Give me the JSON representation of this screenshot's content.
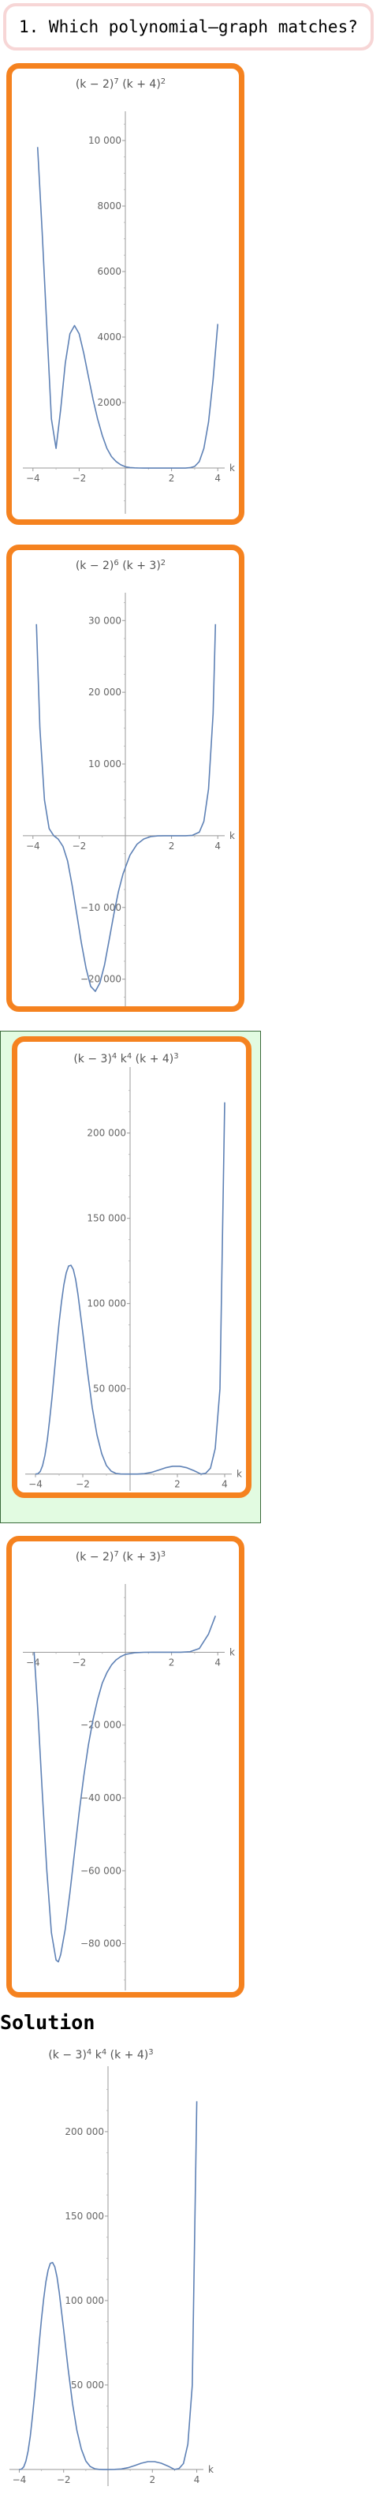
{
  "question": {
    "text": "1. Which polynomial–graph matches?"
  },
  "solution_title": "Solution",
  "options": [
    {
      "id": "option-1",
      "selected": false
    },
    {
      "id": "option-2",
      "selected": false
    },
    {
      "id": "option-3",
      "selected": true
    },
    {
      "id": "option-4",
      "selected": false
    }
  ],
  "chart_data": [
    {
      "type": "line",
      "title_parts": [
        "(k − 2)",
        "7",
        " (k + 4)",
        "2"
      ],
      "xlabel": "k",
      "xticks": [
        -4,
        -2,
        2,
        4
      ],
      "xtick_labels": [
        "−4",
        "−2",
        "2",
        "4"
      ],
      "yticks": [
        2000,
        4000,
        6000,
        8000,
        10000
      ],
      "ytick_labels": [
        "2000",
        "4000",
        "6000",
        "8000",
        "10 000"
      ],
      "xlim": [
        -4.3,
        4.3
      ],
      "ylim": [
        -1300,
        10700
      ],
      "x": [
        -3.8,
        -3.6,
        -3.4,
        -3.2,
        -3.0,
        -2.8,
        -2.6,
        -2.4,
        -2.2,
        -2.0,
        -1.8,
        -1.6,
        -1.4,
        -1.2,
        -1.0,
        -0.8,
        -0.6,
        -0.4,
        -0.2,
        0.0,
        0.2,
        0.4,
        0.6,
        0.8,
        1.0,
        1.2,
        1.4,
        1.6,
        1.8,
        2.0,
        2.2,
        2.4,
        2.6,
        2.8,
        3.0,
        3.2,
        3.4,
        3.6,
        3.8,
        4.0
      ],
      "y": [
        9800,
        7200,
        4300,
        1500,
        600,
        1800,
        3200,
        4100,
        4350,
        4100,
        3500,
        2800,
        2100,
        1500,
        1000,
        600,
        350,
        200,
        100,
        40,
        15,
        5,
        2,
        0,
        0,
        0,
        0,
        0,
        0,
        0,
        0,
        0,
        0,
        10,
        50,
        200,
        600,
        1400,
        2700,
        4400
      ]
    },
    {
      "type": "line",
      "title_parts": [
        "(k − 2)",
        "6",
        " (k + 3)",
        "2"
      ],
      "xlabel": "k",
      "xticks": [
        -4,
        -2,
        2,
        4
      ],
      "xtick_labels": [
        "−4",
        "−2",
        "2",
        "4"
      ],
      "yticks": [
        -20000,
        -10000,
        10000,
        20000,
        30000
      ],
      "ytick_labels": [
        "−20 000",
        "−10 000",
        "10 000",
        "20 000",
        "30 000"
      ],
      "xlim": [
        -4.3,
        4.3
      ],
      "ylim": [
        -24000,
        33000
      ],
      "x": [
        -3.85,
        -3.7,
        -3.5,
        -3.3,
        -3.1,
        -2.9,
        -2.7,
        -2.5,
        -2.3,
        -2.1,
        -1.9,
        -1.7,
        -1.5,
        -1.3,
        -1.1,
        -0.9,
        -0.7,
        -0.5,
        -0.3,
        -0.1,
        0.2,
        0.5,
        0.8,
        1.1,
        1.4,
        1.7,
        2.0,
        2.3,
        2.6,
        2.9,
        3.2,
        3.4,
        3.6,
        3.8,
        3.9
      ],
      "y": [
        29500,
        15000,
        5000,
        1000,
        0,
        -500,
        -1500,
        -3500,
        -7000,
        -11000,
        -15000,
        -18500,
        -21000,
        -21700,
        -20500,
        -18000,
        -14500,
        -11000,
        -7800,
        -5300,
        -2700,
        -1200,
        -450,
        -120,
        -20,
        0,
        0,
        0,
        0,
        50,
        500,
        2000,
        6500,
        17000,
        29500
      ]
    },
    {
      "type": "line",
      "title_parts": [
        "(k − 3)",
        "4",
        " k",
        "4",
        " (k + 4)",
        "3"
      ],
      "xlabel": "k",
      "xticks": [
        -4,
        -2,
        2,
        4
      ],
      "xtick_labels": [
        "−4",
        "−2",
        "2",
        "4"
      ],
      "yticks": [
        50000,
        100000,
        150000,
        200000
      ],
      "ytick_labels": [
        "50 000",
        "100 000",
        "150 000",
        "200 000"
      ],
      "xlim": [
        -4.3,
        4.3
      ],
      "ylim": [
        -8000,
        235000
      ],
      "x": [
        -4.0,
        -3.9,
        -3.8,
        -3.7,
        -3.6,
        -3.5,
        -3.4,
        -3.3,
        -3.2,
        -3.1,
        -3.0,
        -2.9,
        -2.8,
        -2.7,
        -2.6,
        -2.5,
        -2.4,
        -2.3,
        -2.2,
        -2.1,
        -2.0,
        -1.8,
        -1.6,
        -1.4,
        -1.2,
        -1.0,
        -0.8,
        -0.6,
        -0.4,
        -0.2,
        0.0,
        0.3,
        0.6,
        0.9,
        1.2,
        1.5,
        1.8,
        2.1,
        2.4,
        2.7,
        3.0,
        3.2,
        3.4,
        3.6,
        3.8,
        4.0
      ],
      "y": [
        0,
        200,
        1500,
        5000,
        11000,
        20000,
        32000,
        45000,
        60000,
        75000,
        89000,
        101000,
        111000,
        118000,
        122000,
        122500,
        120000,
        114000,
        105000,
        94000,
        83000,
        60000,
        39000,
        23000,
        12000,
        5000,
        1700,
        400,
        60,
        3,
        0,
        20,
        250,
        1000,
        2300,
        3700,
        4600,
        4600,
        3700,
        2000,
        0,
        500,
        3500,
        15000,
        50000,
        218000
      ]
    },
    {
      "type": "line",
      "title_parts": [
        "(k − 2)",
        "7",
        " (k + 3)",
        "3"
      ],
      "xlabel": "k",
      "xticks": [
        -4,
        -2,
        2,
        4
      ],
      "xtick_labels": [
        "−4",
        "−2",
        "2",
        "4"
      ],
      "yticks": [
        -80000,
        -60000,
        -40000,
        -20000
      ],
      "ytick_labels": [
        "−80 000",
        "−60 000",
        "−40 000",
        "−20 000"
      ],
      "xlim": [
        -4.3,
        4.3
      ],
      "ylim": [
        -92000,
        17000
      ],
      "x": [
        -3.95,
        -3.8,
        -3.6,
        -3.4,
        -3.2,
        -3.0,
        -2.9,
        -2.8,
        -2.6,
        -2.4,
        -2.2,
        -2.0,
        -1.8,
        -1.6,
        -1.4,
        -1.2,
        -1.0,
        -0.8,
        -0.6,
        -0.4,
        -0.2,
        0.0,
        0.4,
        0.8,
        1.2,
        1.6,
        2.0,
        2.4,
        2.8,
        3.2,
        3.6,
        3.9
      ],
      "y": [
        0,
        -15000,
        -38000,
        -60000,
        -77000,
        -84500,
        -85000,
        -83000,
        -76000,
        -66000,
        -55000,
        -44000,
        -34000,
        -25500,
        -18500,
        -13000,
        -8500,
        -5600,
        -3500,
        -2100,
        -1200,
        -600,
        -150,
        -20,
        0,
        0,
        0,
        0,
        150,
        1000,
        5000,
        10000
      ]
    },
    {
      "type": "line",
      "title_parts": [
        "(k − 3)",
        "4",
        " k",
        "4",
        " (k + 4)",
        "3"
      ],
      "xlabel": "k",
      "xticks": [
        -4,
        -2,
        2,
        4
      ],
      "xtick_labels": [
        "−4",
        "−2",
        "2",
        "4"
      ],
      "yticks": [
        50000,
        100000,
        150000,
        200000
      ],
      "ytick_labels": [
        "50 000",
        "100 000",
        "150 000",
        "200 000"
      ],
      "xlim": [
        -4.3,
        4.3
      ],
      "ylim": [
        -8000,
        235000
      ],
      "x": [
        -4.0,
        -3.9,
        -3.8,
        -3.7,
        -3.6,
        -3.5,
        -3.4,
        -3.3,
        -3.2,
        -3.1,
        -3.0,
        -2.9,
        -2.8,
        -2.7,
        -2.6,
        -2.5,
        -2.4,
        -2.3,
        -2.2,
        -2.1,
        -2.0,
        -1.8,
        -1.6,
        -1.4,
        -1.2,
        -1.0,
        -0.8,
        -0.6,
        -0.4,
        -0.2,
        0.0,
        0.3,
        0.6,
        0.9,
        1.2,
        1.5,
        1.8,
        2.1,
        2.4,
        2.7,
        3.0,
        3.2,
        3.4,
        3.6,
        3.8,
        4.0
      ],
      "y": [
        0,
        200,
        1500,
        5000,
        11000,
        20000,
        32000,
        45000,
        60000,
        75000,
        89000,
        101000,
        111000,
        118000,
        122000,
        122500,
        120000,
        114000,
        105000,
        94000,
        83000,
        60000,
        39000,
        23000,
        12000,
        5000,
        1700,
        400,
        60,
        3,
        0,
        20,
        250,
        1000,
        2300,
        3700,
        4600,
        4600,
        3700,
        2000,
        0,
        500,
        3500,
        15000,
        50000,
        218000
      ]
    }
  ]
}
